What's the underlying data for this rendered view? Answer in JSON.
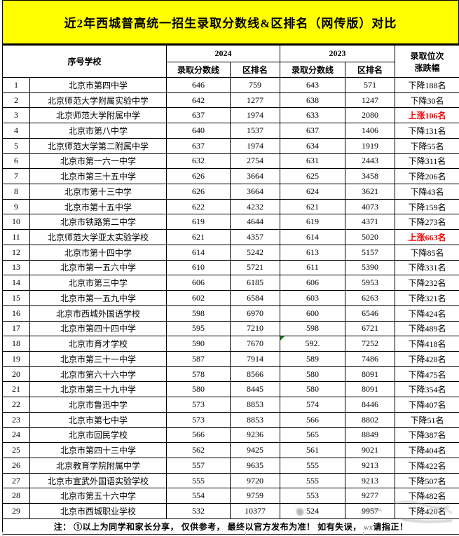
{
  "title": "近2年西城普高统一招生录取分数线&区排名（网传版）对比",
  "colors": {
    "title_bg": "#FFFF00",
    "up_text": "#FF0000",
    "down_text": "#000000",
    "comment_flag": "#1F7A1F"
  },
  "table": {
    "header": {
      "col_sn_school": "序号学校",
      "group_2024": "2024",
      "group_2023": "2023",
      "score_label": "录取分数线",
      "rank_label": "区排名",
      "change_label_line1": "录取位次",
      "change_label_line2": "涨跌幅"
    },
    "rows": [
      {
        "sn": "1",
        "school": "北京市第四中学",
        "score_2024": "646",
        "rank_2024": "759",
        "score_2023": "643",
        "rank_2023": "571",
        "change": "下降188名",
        "change_type": "down"
      },
      {
        "sn": "2",
        "school": "北京师范大学附属实验中学",
        "score_2024": "642",
        "rank_2024": "1277",
        "score_2023": "638",
        "rank_2023": "1247",
        "change": "下降30名",
        "change_type": "down"
      },
      {
        "sn": "3",
        "school": "北京师范大学附属中学",
        "score_2024": "637",
        "rank_2024": "1974",
        "score_2023": "633",
        "rank_2023": "2080",
        "change": "上涨106名",
        "change_type": "up"
      },
      {
        "sn": "4",
        "school": "北京市第八中学",
        "score_2024": "640",
        "rank_2024": "1537",
        "score_2023": "637",
        "rank_2023": "1406",
        "change": "下降131名",
        "change_type": "down"
      },
      {
        "sn": "5",
        "school": "北京师范大学第二附属中学",
        "score_2024": "637",
        "rank_2024": "1974",
        "score_2023": "634",
        "rank_2023": "1919",
        "change": "下降55名",
        "change_type": "down"
      },
      {
        "sn": "6",
        "school": "北京市第一六一中学",
        "score_2024": "632",
        "rank_2024": "2754",
        "score_2023": "631",
        "rank_2023": "2443",
        "change": "下降311名",
        "change_type": "down"
      },
      {
        "sn": "7",
        "school": "北京市第三十五中学",
        "score_2024": "626",
        "rank_2024": "3664",
        "score_2023": "625",
        "rank_2023": "3458",
        "change": "下降206名",
        "change_type": "down"
      },
      {
        "sn": "8",
        "school": "北京市第十三中学",
        "score_2024": "626",
        "rank_2024": "3664",
        "score_2023": "624",
        "rank_2023": "3621",
        "change": "下降43名",
        "change_type": "down"
      },
      {
        "sn": "9",
        "school": "北京市第十五中学",
        "score_2024": "622",
        "rank_2024": "4232",
        "score_2023": "621",
        "rank_2023": "4073",
        "change": "下降159名",
        "change_type": "down"
      },
      {
        "sn": "10",
        "school": "北京市铁路第二中学",
        "score_2024": "619",
        "rank_2024": "4644",
        "score_2023": "619",
        "rank_2023": "4371",
        "change": "下降273名",
        "change_type": "down"
      },
      {
        "sn": "11",
        "school": "北京师范大学亚太实验学校",
        "score_2024": "621",
        "rank_2024": "4357",
        "score_2023": "614",
        "rank_2023": "5020",
        "change": "上涨663名",
        "change_type": "up"
      },
      {
        "sn": "12",
        "school": "北京市第十四中学",
        "score_2024": "614",
        "rank_2024": "5242",
        "score_2023": "613",
        "rank_2023": "5157",
        "change": "下降85名",
        "change_type": "down"
      },
      {
        "sn": "13",
        "school": "北京市第一五六中学",
        "score_2024": "610",
        "rank_2024": "5721",
        "score_2023": "611",
        "rank_2023": "5390",
        "change": "下降331名",
        "change_type": "down"
      },
      {
        "sn": "14",
        "school": "北京市第三中学",
        "score_2024": "606",
        "rank_2024": "6185",
        "score_2023": "606",
        "rank_2023": "5953",
        "change": "下降232名",
        "change_type": "down"
      },
      {
        "sn": "15",
        "school": "北京市第一五九中学",
        "score_2024": "602",
        "rank_2024": "6584",
        "score_2023": "603",
        "rank_2023": "6263",
        "change": "下降321名",
        "change_type": "down"
      },
      {
        "sn": "16",
        "school": "北京市西城外国语学校",
        "score_2024": "598",
        "rank_2024": "6970",
        "score_2023": "600",
        "rank_2023": "6546",
        "change": "下降424名",
        "change_type": "down"
      },
      {
        "sn": "17",
        "school": "北京市第四十四中学",
        "score_2024": "595",
        "rank_2024": "7210",
        "score_2023": "598",
        "rank_2023": "6721",
        "change": "下降489名",
        "change_type": "down"
      },
      {
        "sn": "18",
        "school": "北京市育才学校",
        "score_2024": "590",
        "rank_2024": "7670",
        "score_2023": "592.",
        "rank_2023": "7252",
        "change": "下降418名",
        "change_type": "down",
        "comment_flag": true
      },
      {
        "sn": "19",
        "school": "北京市第三十一中学",
        "score_2024": "587",
        "rank_2024": "7914",
        "score_2023": "589",
        "rank_2023": "7486",
        "change": "下降428名",
        "change_type": "down"
      },
      {
        "sn": "20",
        "school": "北京市第六十六中学",
        "score_2024": "578",
        "rank_2024": "8566",
        "score_2023": "580",
        "rank_2023": "8091",
        "change": "下降475名",
        "change_type": "down"
      },
      {
        "sn": "21",
        "school": "北京市第三十九中学",
        "score_2024": "580",
        "rank_2024": "8445",
        "score_2023": "580",
        "rank_2023": "8091",
        "change": "下降354名",
        "change_type": "down"
      },
      {
        "sn": "22",
        "school": "北京市鲁迅中学",
        "score_2024": "573",
        "rank_2024": "8853",
        "score_2023": "574",
        "rank_2023": "8446",
        "change": "下降407名",
        "change_type": "down"
      },
      {
        "sn": "23",
        "school": "北京市第七中学",
        "score_2024": "573",
        "rank_2024": "8853",
        "score_2023": "566",
        "rank_2023": "8802",
        "change": "下降51名",
        "change_type": "down"
      },
      {
        "sn": "24",
        "school": "北京市回民学校",
        "score_2024": "566",
        "rank_2024": "9236",
        "score_2023": "565",
        "rank_2023": "8849",
        "change": "下降387名",
        "change_type": "down"
      },
      {
        "sn": "25",
        "school": "北京市第四十三中学",
        "score_2024": "562",
        "rank_2024": "9425",
        "score_2023": "561",
        "rank_2023": "9021",
        "change": "下降404名",
        "change_type": "down"
      },
      {
        "sn": "26",
        "school": "北京教育学院附属中学",
        "score_2024": "557",
        "rank_2024": "9635",
        "score_2023": "555",
        "rank_2023": "9213",
        "change": "下降422名",
        "change_type": "down"
      },
      {
        "sn": "27",
        "school": "北京市宣武外国语实验学校",
        "score_2024": "555",
        "rank_2024": "9720",
        "score_2023": "555",
        "rank_2023": "9213",
        "change": "下降507名",
        "change_type": "down"
      },
      {
        "sn": "28",
        "school": "北京市第五十六中学",
        "score_2024": "554",
        "rank_2024": "9759",
        "score_2023": "553",
        "rank_2023": "9277",
        "change": "下降482名",
        "change_type": "down"
      },
      {
        "sn": "29",
        "school": "北京市西城职业学校",
        "score_2024": "532",
        "rank_2024": "10377",
        "score_2023": "524",
        "rank_2023": "9957",
        "change": "下降420名",
        "change_type": "down"
      }
    ],
    "note_prefix": "注： ①以上为同学和家长分享， 仅供参考， 最终以官方发布为准！ 如有失误， ",
    "note_wx": "wx",
    "note_suffix": "请指正！"
  }
}
